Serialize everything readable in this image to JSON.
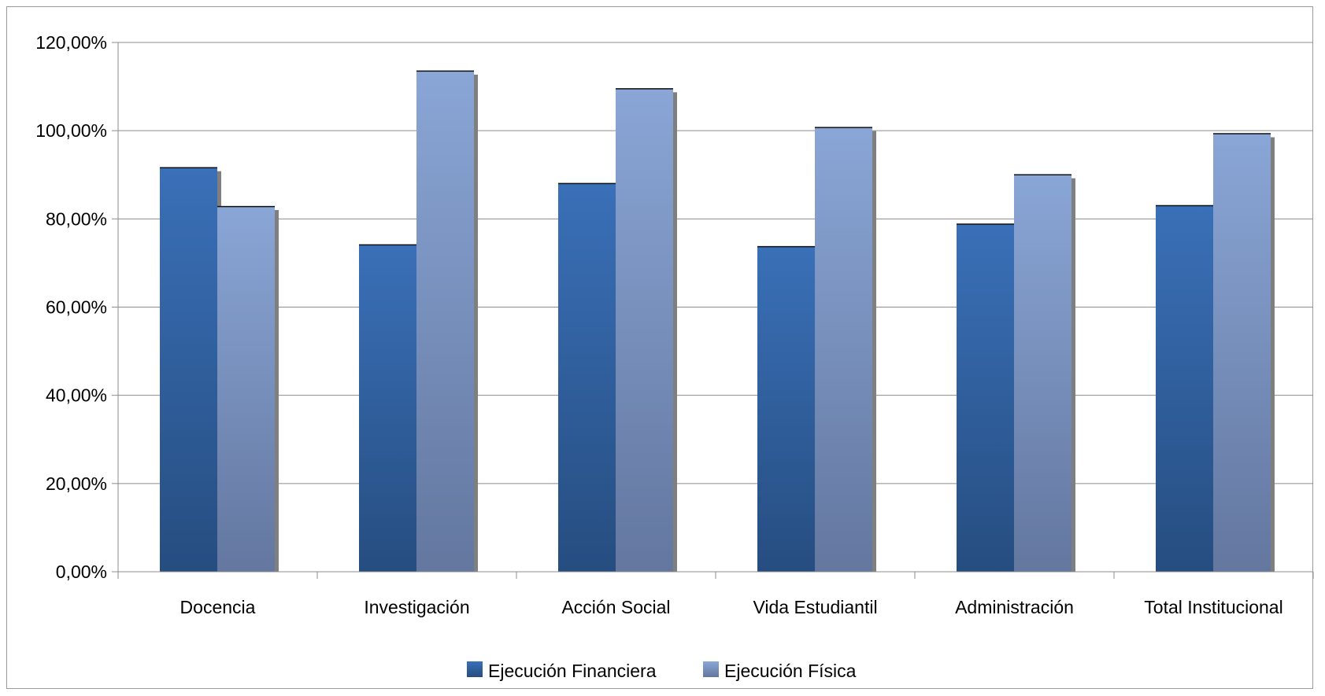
{
  "chart_data": {
    "type": "bar",
    "categories": [
      "Docencia",
      "Investigación",
      "Acción Social",
      "Vida Estudiantil",
      "Administración",
      "Total Institucional"
    ],
    "series": [
      {
        "name": "Ejecución Financiera",
        "values": [
          91.7,
          74.2,
          88.1,
          73.8,
          78.9,
          83.1
        ],
        "color_top": "#3a70b8",
        "color_bottom": "#264d80"
      },
      {
        "name": "Ejecución Física",
        "values": [
          82.9,
          113.6,
          109.6,
          100.8,
          90.1,
          99.4
        ],
        "color_top": "#8aa6d6",
        "color_bottom": "#63779f"
      }
    ],
    "ylim": [
      0,
      120
    ],
    "yticks": [
      0,
      20,
      40,
      60,
      80,
      100,
      120
    ],
    "ytick_labels": [
      "0,00%",
      "20,00%",
      "40,00%",
      "60,00%",
      "80,00%",
      "100,00%",
      "120,00%"
    ],
    "title": "",
    "xlabel": "",
    "ylabel": "",
    "grid": true,
    "legend_position": "bottom"
  }
}
